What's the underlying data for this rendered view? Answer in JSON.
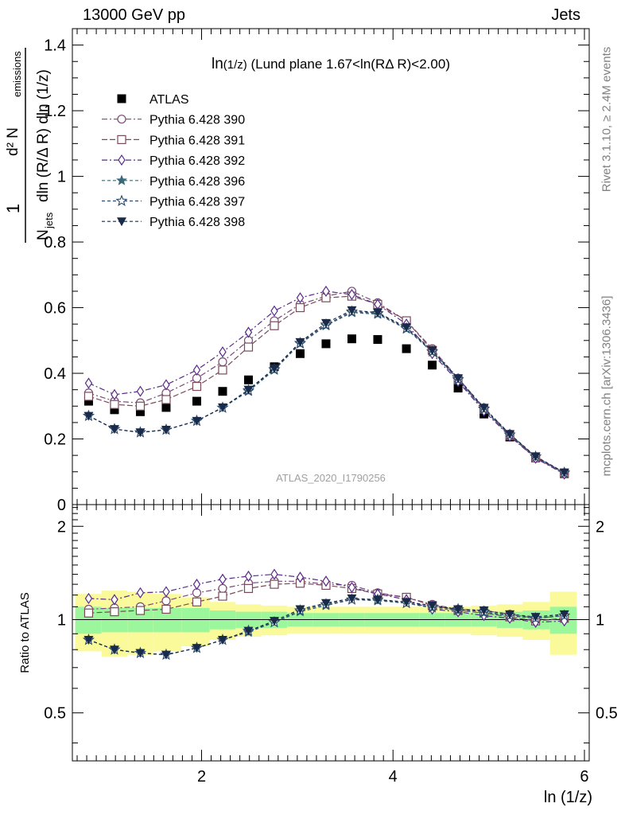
{
  "header": {
    "left": "13000 GeV pp",
    "right": "Jets"
  },
  "side": {
    "rivet": "Rivet 3.1.10, ≥ 2.4M events",
    "mcplots": "mcplots.cern.ch [arXiv:1306.3436]"
  },
  "colors": {
    "data": "#000000",
    "p390": "#7a4a7a",
    "p391": "#7a4a5a",
    "p392": "#5a2a8a",
    "p396": "#3a6a7a",
    "p397": "#2a4a6a",
    "p398": "#1a2a4a",
    "band_inner": "#9cf79c",
    "band_outer": "#fafa9a"
  },
  "chart_data": [
    {
      "type": "scatter",
      "panel": "main",
      "title": "ln(1/z) (Lund plane 1.67<ln(RΔ R)<2.00)",
      "title_main": "ln",
      "title_small": "(1/z)",
      "title_rest": " (Lund plane 1.67<ln(RΔ R)<2.00)",
      "watermark": "ATLAS_2020_I1790256",
      "ylabel": "1/N_jets dln(R/Δ R) dln(1/z) d²N_emissions",
      "ylabel_parts": {
        "one": "1",
        "d2": "d² N",
        "emissions": "emissions",
        "N": "N",
        "jets": "jets",
        "denom_rest": "dln (R/Δ R) dln (1/z)"
      },
      "xlim": [
        0.65,
        6.05
      ],
      "ylim": [
        0,
        1.45
      ],
      "yticks": [
        0,
        0.2,
        0.4,
        0.6,
        0.8,
        1,
        1.2,
        1.4
      ],
      "ytick_labels": [
        "0",
        "0.2",
        "0.4",
        "0.6",
        "0.8",
        "1",
        "1.2",
        "1.4"
      ],
      "x": [
        0.82,
        1.09,
        1.36,
        1.63,
        1.95,
        2.22,
        2.49,
        2.76,
        3.03,
        3.3,
        3.57,
        3.84,
        4.14,
        4.41,
        4.68,
        4.95,
        5.22,
        5.49,
        5.79
      ],
      "series": [
        {
          "name": "ATLAS",
          "marker": "square-filled",
          "color_key": "data",
          "dash": "none",
          "values": [
            0.315,
            0.289,
            0.283,
            0.296,
            0.315,
            0.345,
            0.38,
            0.42,
            0.46,
            0.49,
            0.505,
            0.503,
            0.475,
            0.425,
            0.355,
            0.276,
            0.206,
            0.144,
            0.094
          ]
        },
        {
          "name": "Pythia 6.428 390",
          "marker": "circle-open",
          "color_key": "p390",
          "dash": "7,3,2,3",
          "values": [
            0.34,
            0.315,
            0.31,
            0.34,
            0.385,
            0.435,
            0.5,
            0.56,
            0.61,
            0.635,
            0.65,
            0.615,
            0.56,
            0.475,
            0.385,
            0.295,
            0.215,
            0.145,
            0.097
          ]
        },
        {
          "name": "Pythia 6.428 391",
          "marker": "square-open",
          "color_key": "p391",
          "dash": "7,3",
          "values": [
            0.33,
            0.305,
            0.3,
            0.32,
            0.36,
            0.41,
            0.48,
            0.545,
            0.6,
            0.63,
            0.635,
            0.61,
            0.56,
            0.47,
            0.38,
            0.29,
            0.21,
            0.142,
            0.095
          ]
        },
        {
          "name": "Pythia 6.428 392",
          "marker": "diamond-open",
          "color_key": "p392",
          "dash": "7,3,2,3",
          "values": [
            0.37,
            0.335,
            0.345,
            0.365,
            0.41,
            0.465,
            0.525,
            0.59,
            0.63,
            0.65,
            0.64,
            0.61,
            0.55,
            0.46,
            0.375,
            0.285,
            0.208,
            0.141,
            0.093
          ]
        },
        {
          "name": "Pythia 6.428 396",
          "marker": "star-filled",
          "color_key": "p396",
          "dash": "4,3",
          "values": [
            0.27,
            0.23,
            0.22,
            0.228,
            0.255,
            0.295,
            0.345,
            0.41,
            0.49,
            0.545,
            0.585,
            0.58,
            0.535,
            0.465,
            0.38,
            0.29,
            0.212,
            0.145,
            0.097
          ]
        },
        {
          "name": "Pythia 6.428 397",
          "marker": "star-open",
          "color_key": "p397",
          "dash": "4,3",
          "values": [
            0.27,
            0.23,
            0.22,
            0.228,
            0.255,
            0.295,
            0.348,
            0.412,
            0.492,
            0.548,
            0.588,
            0.583,
            0.537,
            0.467,
            0.382,
            0.292,
            0.213,
            0.146,
            0.097
          ]
        },
        {
          "name": "Pythia 6.428 398",
          "marker": "triangle-down-filled",
          "color_key": "p398",
          "dash": "4,3",
          "values": [
            0.27,
            0.23,
            0.22,
            0.228,
            0.255,
            0.296,
            0.35,
            0.415,
            0.495,
            0.553,
            0.592,
            0.585,
            0.54,
            0.47,
            0.385,
            0.295,
            0.215,
            0.147,
            0.098
          ]
        }
      ]
    },
    {
      "type": "scatter",
      "panel": "ratio",
      "xlabel": "ln (1/z)",
      "ylabel": "Ratio to ATLAS",
      "xlim": [
        0.65,
        6.05
      ],
      "ylim": [
        0.35,
        2.35
      ],
      "xticks": [
        2,
        4,
        6
      ],
      "xtick_labels": [
        "2",
        "4",
        "6"
      ],
      "yticks": [
        0.5,
        1,
        2
      ],
      "ytick_labels": [
        "0.5",
        "1",
        "2"
      ],
      "band_edges": [
        0.68,
        0.955,
        1.225,
        1.495,
        1.79,
        2.085,
        2.355,
        2.625,
        2.895,
        3.165,
        3.435,
        3.705,
        3.99,
        4.275,
        4.545,
        4.815,
        5.085,
        5.355,
        5.64,
        5.92
      ],
      "band_inner_lo": [
        0.9,
        0.91,
        0.91,
        0.91,
        0.91,
        0.93,
        0.94,
        0.94,
        0.95,
        0.95,
        0.95,
        0.95,
        0.95,
        0.95,
        0.95,
        0.95,
        0.94,
        0.93,
        0.9
      ],
      "band_inner_hi": [
        1.1,
        1.09,
        1.09,
        1.09,
        1.09,
        1.07,
        1.06,
        1.06,
        1.05,
        1.05,
        1.05,
        1.05,
        1.05,
        1.05,
        1.05,
        1.05,
        1.06,
        1.07,
        1.1
      ],
      "band_outer_lo": [
        0.79,
        0.76,
        0.77,
        0.79,
        0.82,
        0.86,
        0.88,
        0.89,
        0.9,
        0.9,
        0.9,
        0.9,
        0.9,
        0.9,
        0.9,
        0.89,
        0.88,
        0.86,
        0.77
      ],
      "band_outer_hi": [
        1.21,
        1.24,
        1.23,
        1.21,
        1.18,
        1.14,
        1.12,
        1.11,
        1.1,
        1.1,
        1.1,
        1.1,
        1.1,
        1.1,
        1.1,
        1.11,
        1.12,
        1.14,
        1.23
      ],
      "series": [
        {
          "name": "Pythia 6.428 390",
          "marker": "circle-open",
          "color_key": "p390",
          "dash": "7,3,2,3",
          "values": [
            1.08,
            1.09,
            1.1,
            1.15,
            1.22,
            1.26,
            1.31,
            1.33,
            1.33,
            1.3,
            1.29,
            1.22,
            1.18,
            1.12,
            1.08,
            1.07,
            1.04,
            1.01,
            1.03
          ]
        },
        {
          "name": "Pythia 6.428 391",
          "marker": "square-open",
          "color_key": "p391",
          "dash": "7,3",
          "values": [
            1.05,
            1.06,
            1.07,
            1.08,
            1.14,
            1.19,
            1.26,
            1.3,
            1.31,
            1.29,
            1.26,
            1.21,
            1.18,
            1.11,
            1.07,
            1.05,
            1.02,
            0.99,
            1.01
          ]
        },
        {
          "name": "Pythia 6.428 392",
          "marker": "diamond-open",
          "color_key": "p392",
          "dash": "7,3,2,3",
          "values": [
            1.17,
            1.16,
            1.22,
            1.23,
            1.3,
            1.35,
            1.38,
            1.4,
            1.37,
            1.33,
            1.27,
            1.21,
            1.16,
            1.08,
            1.06,
            1.03,
            1.01,
            0.98,
            0.99
          ]
        },
        {
          "name": "Pythia 6.428 396",
          "marker": "star-filled",
          "color_key": "p396",
          "dash": "4,3",
          "values": [
            0.86,
            0.8,
            0.78,
            0.77,
            0.81,
            0.86,
            0.91,
            0.98,
            1.06,
            1.11,
            1.16,
            1.15,
            1.13,
            1.09,
            1.07,
            1.05,
            1.03,
            1.01,
            1.03
          ]
        },
        {
          "name": "Pythia 6.428 397",
          "marker": "star-open",
          "color_key": "p397",
          "dash": "4,3",
          "values": [
            0.86,
            0.8,
            0.78,
            0.77,
            0.81,
            0.86,
            0.92,
            0.98,
            1.07,
            1.12,
            1.16,
            1.16,
            1.13,
            1.1,
            1.08,
            1.06,
            1.03,
            1.01,
            1.03
          ]
        },
        {
          "name": "Pythia 6.428 398",
          "marker": "triangle-down-filled",
          "color_key": "p398",
          "dash": "4,3",
          "values": [
            0.86,
            0.8,
            0.78,
            0.77,
            0.81,
            0.86,
            0.92,
            0.99,
            1.08,
            1.13,
            1.17,
            1.16,
            1.14,
            1.11,
            1.08,
            1.07,
            1.04,
            1.02,
            1.04
          ]
        }
      ]
    }
  ]
}
